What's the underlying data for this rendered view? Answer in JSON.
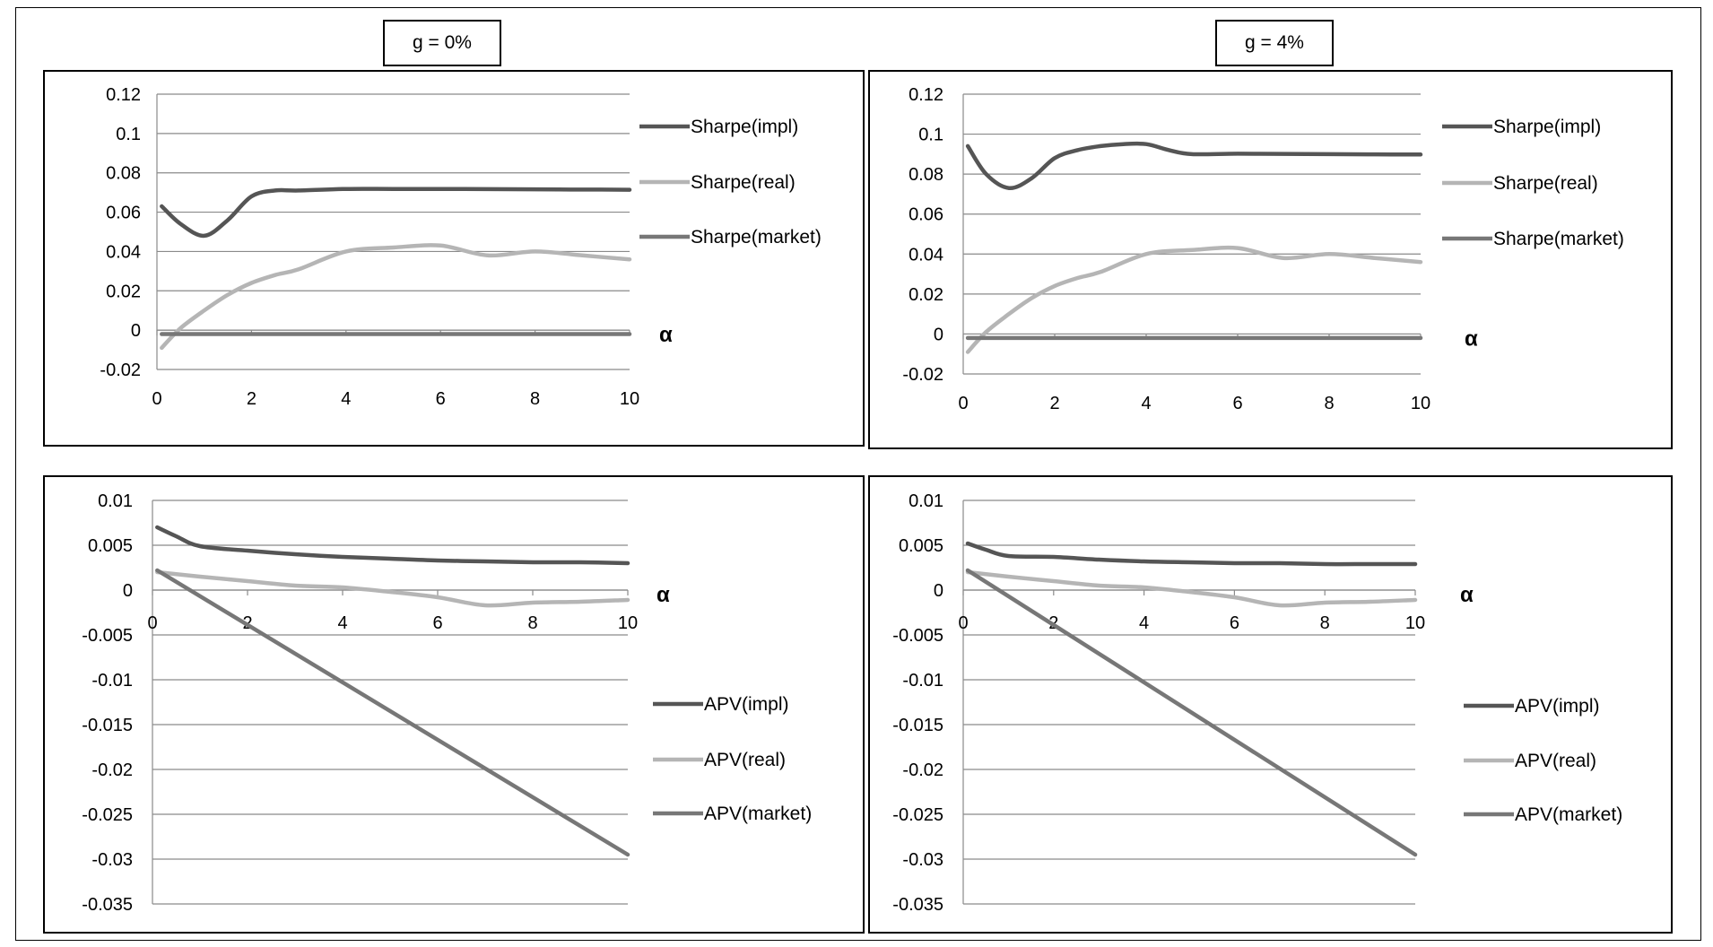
{
  "headers": [
    "g = 0%",
    "g = 4%"
  ],
  "chart_data": [
    {
      "type": "line",
      "xlabel": "α",
      "xlim": [
        0,
        10
      ],
      "ylim": [
        -0.02,
        0.12
      ],
      "xticks": [
        "0",
        "2",
        "4",
        "6",
        "8",
        "10"
      ],
      "yticks": [
        "0.12",
        "0.1",
        "0.08",
        "0.06",
        "0.04",
        "0.02",
        "0",
        "-0.02"
      ],
      "legend_position": "right",
      "series": [
        {
          "name": "Sharpe(impl)",
          "color": "#555555",
          "x": [
            0.1,
            0.5,
            1,
            1.5,
            2,
            2.5,
            3,
            4,
            5,
            6,
            7,
            8,
            9,
            10
          ],
          "y": [
            0.063,
            0.054,
            0.048,
            0.056,
            0.068,
            0.071,
            0.071,
            0.0718,
            0.0718,
            0.0718,
            0.0717,
            0.0716,
            0.0715,
            0.0714
          ]
        },
        {
          "name": "Sharpe(real)",
          "color": "#b5b5b5",
          "x": [
            0.1,
            0.5,
            1,
            1.5,
            2,
            2.5,
            3,
            4,
            5,
            6,
            7,
            8,
            9,
            10
          ],
          "y": [
            -0.009,
            0.001,
            0.01,
            0.018,
            0.024,
            0.028,
            0.031,
            0.04,
            0.042,
            0.043,
            0.038,
            0.04,
            0.038,
            0.036
          ]
        },
        {
          "name": "Sharpe(market)",
          "color": "#777777",
          "x": [
            0.1,
            10
          ],
          "y": [
            -0.002,
            -0.002
          ]
        }
      ]
    },
    {
      "type": "line",
      "xlabel": "α",
      "xlim": [
        0,
        10
      ],
      "ylim": [
        -0.02,
        0.12
      ],
      "xticks": [
        "0",
        "2",
        "4",
        "6",
        "8",
        "10"
      ],
      "yticks": [
        "0.12",
        "0.1",
        "0.08",
        "0.06",
        "0.04",
        "0.02",
        "0",
        "-0.02"
      ],
      "legend_position": "right",
      "series": [
        {
          "name": "Sharpe(impl)",
          "color": "#555555",
          "x": [
            0.1,
            0.5,
            1,
            1.5,
            2,
            2.5,
            3,
            3.5,
            4,
            4.5,
            5,
            6,
            7,
            8,
            9,
            10
          ],
          "y": [
            0.094,
            0.08,
            0.073,
            0.078,
            0.088,
            0.092,
            0.094,
            0.095,
            0.095,
            0.092,
            0.09,
            0.0902,
            0.0901,
            0.09,
            0.0899,
            0.0898
          ]
        },
        {
          "name": "Sharpe(real)",
          "color": "#b5b5b5",
          "x": [
            0.1,
            0.5,
            1,
            1.5,
            2,
            2.5,
            3,
            4,
            5,
            6,
            7,
            8,
            9,
            10
          ],
          "y": [
            -0.009,
            0.001,
            0.01,
            0.018,
            0.024,
            0.028,
            0.031,
            0.04,
            0.042,
            0.043,
            0.038,
            0.04,
            0.038,
            0.036
          ]
        },
        {
          "name": "Sharpe(market)",
          "color": "#777777",
          "x": [
            0.1,
            10
          ],
          "y": [
            -0.002,
            -0.002
          ]
        }
      ]
    },
    {
      "type": "line",
      "xlabel": "α",
      "xlim": [
        0,
        10
      ],
      "ylim": [
        -0.035,
        0.01
      ],
      "xticks": [
        "0",
        "2",
        "4",
        "6",
        "8",
        "10"
      ],
      "yticks": [
        "0.01",
        "0.005",
        "0",
        "-0.005",
        "-0.01",
        "-0.015",
        "-0.02",
        "-0.025",
        "-0.03",
        "-0.035"
      ],
      "legend_position": "right",
      "series": [
        {
          "name": "APV(impl)",
          "color": "#555555",
          "x": [
            0.1,
            0.5,
            1,
            2,
            3,
            4,
            5,
            6,
            7,
            8,
            9,
            10
          ],
          "y": [
            0.007,
            0.006,
            0.0049,
            0.0044,
            0.004,
            0.0037,
            0.0035,
            0.0033,
            0.0032,
            0.0031,
            0.0031,
            0.003
          ]
        },
        {
          "name": "APV(real)",
          "color": "#b5b5b5",
          "x": [
            0.1,
            1,
            2,
            3,
            4,
            5,
            6,
            7,
            8,
            9,
            10
          ],
          "y": [
            0.002,
            0.0015,
            0.001,
            0.0005,
            0.0003,
            -0.0002,
            -0.0008,
            -0.0017,
            -0.0014,
            -0.0013,
            -0.0011
          ]
        },
        {
          "name": "APV(market)",
          "color": "#777777",
          "x": [
            0.1,
            10
          ],
          "y": [
            0.0022,
            -0.0295
          ]
        }
      ]
    },
    {
      "type": "line",
      "xlabel": "α",
      "xlim": [
        0,
        10
      ],
      "ylim": [
        -0.035,
        0.01
      ],
      "xticks": [
        "0",
        "2",
        "4",
        "6",
        "8",
        "10"
      ],
      "yticks": [
        "0.01",
        "0.005",
        "0",
        "-0.005",
        "-0.01",
        "-0.015",
        "-0.02",
        "-0.025",
        "-0.03",
        "-0.035"
      ],
      "legend_position": "right",
      "series": [
        {
          "name": "APV(impl)",
          "color": "#555555",
          "x": [
            0.1,
            0.5,
            1,
            2,
            3,
            4,
            5,
            6,
            7,
            8,
            9,
            10
          ],
          "y": [
            0.0052,
            0.0045,
            0.0038,
            0.0037,
            0.0034,
            0.0032,
            0.0031,
            0.003,
            0.003,
            0.0029,
            0.0029,
            0.0029
          ]
        },
        {
          "name": "APV(real)",
          "color": "#b5b5b5",
          "x": [
            0.1,
            1,
            2,
            3,
            4,
            5,
            6,
            7,
            8,
            9,
            10
          ],
          "y": [
            0.002,
            0.0015,
            0.001,
            0.0005,
            0.0003,
            -0.0002,
            -0.0008,
            -0.0017,
            -0.0014,
            -0.0013,
            -0.0011
          ]
        },
        {
          "name": "APV(market)",
          "color": "#777777",
          "x": [
            0.1,
            10
          ],
          "y": [
            0.0022,
            -0.0295
          ]
        }
      ]
    }
  ]
}
